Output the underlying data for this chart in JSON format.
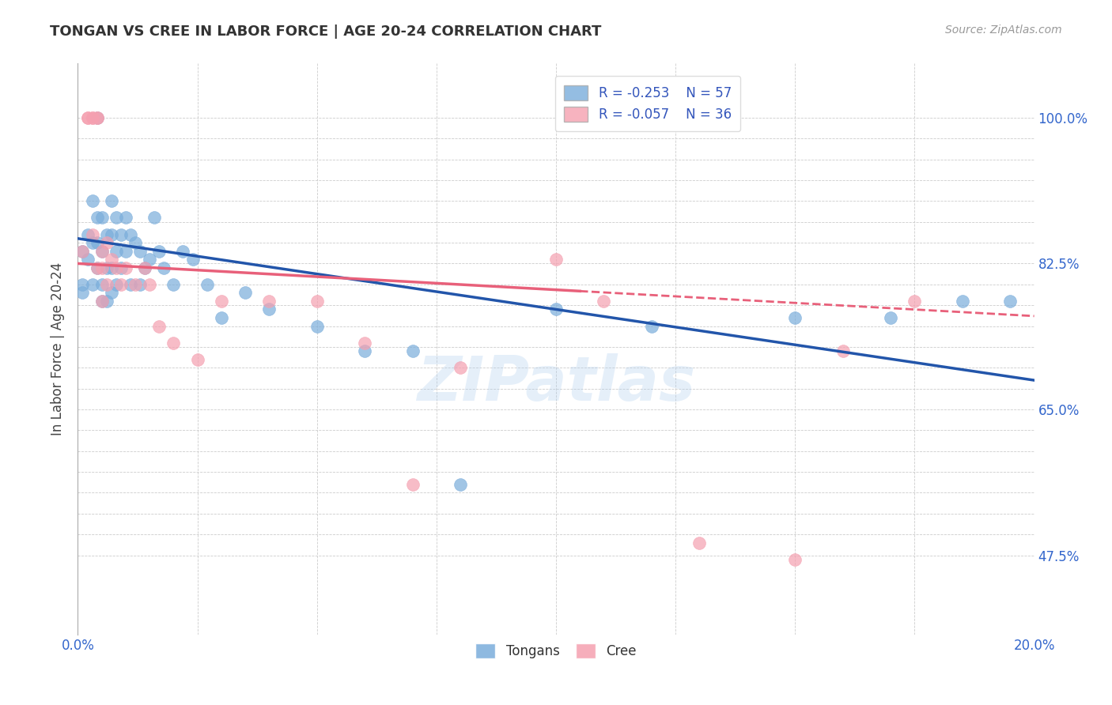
{
  "title": "TONGAN VS CREE IN LABOR FORCE | AGE 20-24 CORRELATION CHART",
  "source": "Source: ZipAtlas.com",
  "ylabel": "In Labor Force | Age 20-24",
  "ytick_labels_shown": [
    "47.5%",
    "65.0%",
    "82.5%",
    "100.0%"
  ],
  "ytick_values_shown": [
    0.475,
    0.65,
    0.825,
    1.0
  ],
  "xmin": 0.0,
  "xmax": 0.2,
  "ymin": 0.38,
  "ymax": 1.065,
  "legend_blue_r": "-0.253",
  "legend_blue_n": "57",
  "legend_pink_r": "-0.057",
  "legend_pink_n": "36",
  "blue_color": "#7aaddb",
  "pink_color": "#f5a0b0",
  "trendline_blue_color": "#2255aa",
  "trendline_pink_color": "#e8607a",
  "blue_x": [
    0.001,
    0.001,
    0.001,
    0.002,
    0.002,
    0.003,
    0.003,
    0.003,
    0.004,
    0.004,
    0.004,
    0.004,
    0.005,
    0.005,
    0.005,
    0.005,
    0.006,
    0.006,
    0.006,
    0.007,
    0.007,
    0.007,
    0.007,
    0.008,
    0.008,
    0.008,
    0.009,
    0.009,
    0.01,
    0.01,
    0.011,
    0.011,
    0.012,
    0.013,
    0.013,
    0.014,
    0.015,
    0.016,
    0.017,
    0.018,
    0.02,
    0.022,
    0.024,
    0.027,
    0.03,
    0.035,
    0.04,
    0.05,
    0.06,
    0.07,
    0.08,
    0.1,
    0.12,
    0.15,
    0.17,
    0.185,
    0.195
  ],
  "blue_y": [
    0.8,
    0.84,
    0.79,
    0.86,
    0.83,
    0.9,
    0.85,
    0.8,
    1.0,
    0.88,
    0.85,
    0.82,
    0.88,
    0.84,
    0.8,
    0.78,
    0.86,
    0.82,
    0.78,
    0.9,
    0.86,
    0.82,
    0.79,
    0.88,
    0.84,
    0.8,
    0.86,
    0.82,
    0.88,
    0.84,
    0.86,
    0.8,
    0.85,
    0.84,
    0.8,
    0.82,
    0.83,
    0.88,
    0.84,
    0.82,
    0.8,
    0.84,
    0.83,
    0.8,
    0.76,
    0.79,
    0.77,
    0.75,
    0.72,
    0.72,
    0.56,
    0.77,
    0.75,
    0.76,
    0.76,
    0.78,
    0.78
  ],
  "pink_x": [
    0.001,
    0.002,
    0.002,
    0.003,
    0.003,
    0.003,
    0.004,
    0.004,
    0.004,
    0.005,
    0.005,
    0.005,
    0.006,
    0.006,
    0.007,
    0.008,
    0.009,
    0.01,
    0.012,
    0.014,
    0.015,
    0.017,
    0.02,
    0.025,
    0.03,
    0.04,
    0.05,
    0.06,
    0.07,
    0.08,
    0.1,
    0.11,
    0.13,
    0.15,
    0.16,
    0.175
  ],
  "pink_y": [
    0.84,
    1.0,
    1.0,
    1.0,
    1.0,
    0.86,
    1.0,
    1.0,
    0.82,
    0.84,
    0.82,
    0.78,
    0.85,
    0.8,
    0.83,
    0.82,
    0.8,
    0.82,
    0.8,
    0.82,
    0.8,
    0.75,
    0.73,
    0.71,
    0.78,
    0.78,
    0.78,
    0.73,
    0.56,
    0.7,
    0.83,
    0.78,
    0.49,
    0.47,
    0.72,
    0.78
  ],
  "watermark": "ZIPatlas",
  "background_color": "#ffffff",
  "grid_color": "#cccccc",
  "grid_yticks": [
    0.475,
    0.5,
    0.525,
    0.55,
    0.575,
    0.6,
    0.625,
    0.65,
    0.675,
    0.7,
    0.725,
    0.75,
    0.775,
    0.8,
    0.825,
    0.85,
    0.875,
    0.9,
    0.925,
    0.95,
    0.975,
    1.0
  ],
  "x_tick_positions": [
    0.0,
    0.025,
    0.05,
    0.075,
    0.1,
    0.125,
    0.15,
    0.175,
    0.2
  ]
}
